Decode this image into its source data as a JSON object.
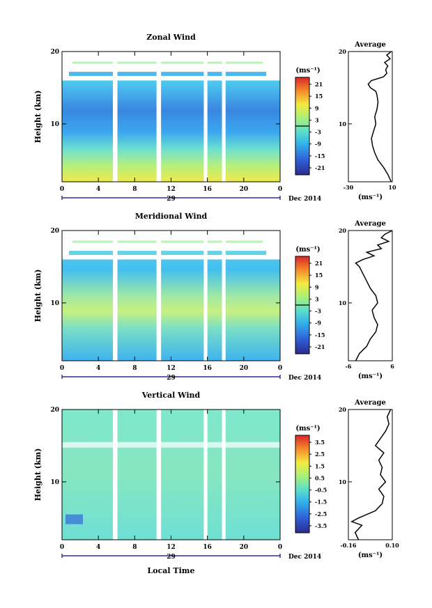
{
  "shared": {
    "date_label": "Dec 2014",
    "day_label": "29",
    "x_ticks": [
      "0",
      "4",
      "8",
      "12",
      "16",
      "20",
      "0"
    ],
    "y_axis_label": "Height (km)",
    "x_axis_label": "Local Time",
    "units_label": "(ms⁻¹)",
    "avg_title": "Average",
    "avg_unit_label": "(ms⁻¹)"
  },
  "chart_data": [
    {
      "type": "heatmap",
      "title": "Zonal Wind",
      "x_unit": "local time (h)",
      "xlim": [
        0,
        24
      ],
      "ylim": [
        2,
        20
      ],
      "y_ticks": [
        "20",
        "10"
      ],
      "colorbar": {
        "ticks": [
          "21",
          "15",
          "9",
          "3",
          "-3",
          "-9",
          "-15",
          "-21"
        ],
        "range": [
          -24,
          24
        ]
      },
      "data_gaps_hours": [
        [
          5.6,
          6.1
        ],
        [
          10.4,
          10.9
        ],
        [
          15.6,
          16.0
        ],
        [
          17.6,
          18.0
        ]
      ],
      "average_profile": {
        "xlim": [
          -30,
          10
        ],
        "x_ticks": [
          "-30",
          "10"
        ],
        "y_ticks": [
          "20",
          "10"
        ],
        "height_km": [
          2,
          3,
          4,
          5,
          6,
          7,
          8,
          9,
          10,
          11,
          12,
          13,
          14,
          14.5,
          15,
          15.5,
          16,
          16.5,
          17,
          17.5,
          18,
          18.5,
          19,
          19.5,
          20
        ],
        "value": [
          9,
          6,
          2,
          -3,
          -6,
          -8,
          -9,
          -7,
          -5,
          -6,
          -4,
          -3,
          -4,
          -5,
          -10,
          -12,
          -9,
          2,
          5,
          4,
          6,
          3,
          8,
          5,
          9
        ]
      }
    },
    {
      "type": "heatmap",
      "title": "Meridional Wind",
      "x_unit": "local time (h)",
      "xlim": [
        0,
        24
      ],
      "ylim": [
        2,
        20
      ],
      "y_ticks": [
        "20",
        "10"
      ],
      "colorbar": {
        "ticks": [
          "21",
          "15",
          "9",
          "3",
          "-3",
          "-9",
          "-15",
          "-21"
        ],
        "range": [
          -24,
          24
        ]
      },
      "data_gaps_hours": [
        [
          5.6,
          6.1
        ],
        [
          10.4,
          10.9
        ],
        [
          15.6,
          16.0
        ],
        [
          17.6,
          18.0
        ]
      ],
      "average_profile": {
        "xlim": [
          -6,
          6
        ],
        "x_ticks": [
          "-6",
          "6"
        ],
        "y_ticks": [
          "20",
          "10"
        ],
        "height_km": [
          2,
          3,
          4,
          5,
          6,
          7,
          8,
          9,
          10,
          11,
          12,
          13,
          14,
          15,
          15.5,
          16,
          16.5,
          17,
          17.5,
          18,
          18.5,
          19,
          19.5,
          20
        ],
        "value": [
          -4,
          -3,
          -1,
          0,
          1.5,
          2,
          1,
          0.5,
          2,
          1.5,
          0,
          -1,
          -2,
          -3,
          -4,
          -2,
          1,
          -1,
          3,
          2,
          5,
          3,
          4,
          6
        ]
      }
    },
    {
      "type": "heatmap",
      "title": "Vertical Wind",
      "x_unit": "local time (h)",
      "xlim": [
        0,
        24
      ],
      "ylim": [
        2,
        20
      ],
      "y_ticks": [
        "20",
        "10"
      ],
      "colorbar": {
        "ticks": [
          "3.5",
          "2.5",
          "1.5",
          "0.5",
          "-0.5",
          "-1.5",
          "-2.5",
          "-3.5"
        ],
        "range": [
          -4,
          4
        ]
      },
      "data_gaps_hours": [
        [
          5.6,
          6.1
        ],
        [
          10.4,
          10.9
        ],
        [
          15.6,
          16.0
        ],
        [
          17.6,
          18.0
        ]
      ],
      "average_profile": {
        "xlim": [
          -0.16,
          0.1
        ],
        "x_ticks": [
          "-0.16",
          "0.10"
        ],
        "y_ticks": [
          "20",
          "10"
        ],
        "height_km": [
          2,
          3,
          4,
          4.5,
          5,
          6,
          7,
          8,
          9,
          10,
          11,
          12,
          13,
          14,
          15,
          16,
          17,
          18,
          19,
          20
        ],
        "value": [
          -0.1,
          -0.12,
          -0.08,
          -0.14,
          -0.1,
          0.0,
          0.04,
          0.05,
          0.02,
          0.06,
          0.03,
          0.04,
          0.02,
          0.05,
          0.0,
          0.03,
          0.06,
          0.08,
          0.07,
          0.09
        ]
      }
    }
  ]
}
